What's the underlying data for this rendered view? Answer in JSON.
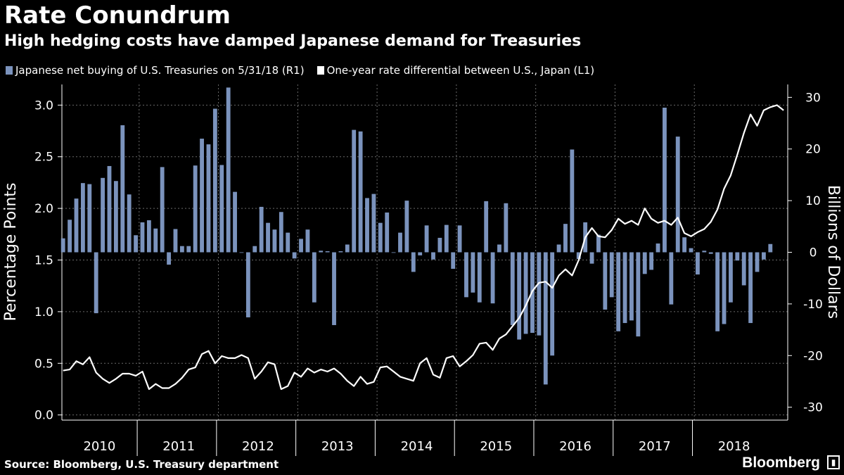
{
  "header": {
    "title": "Rate Conundrum",
    "subtitle": "High hedging costs have damped Japanese demand for Treasuries"
  },
  "legend": {
    "bars_label": "Japanese net buying of U.S. Treasuries on 5/31/18 (R1)",
    "line_label": "One-year rate differential between U.S., Japan (L1)"
  },
  "footer": {
    "source": "Source: Bloomberg, U.S. Treasury department",
    "brand": "Bloomberg"
  },
  "colors": {
    "background": "#000000",
    "bars": "#7b93bd",
    "line": "#ffffff",
    "grid": "#6a6a6a"
  },
  "chart_data": {
    "type": "bar+line",
    "title": "Rate Conundrum",
    "subtitle": "High hedging costs have damped Japanese demand for Treasuries",
    "x_categories": [
      "2010",
      "2011",
      "2012",
      "2013",
      "2014",
      "2015",
      "2016",
      "2017",
      "2018"
    ],
    "left_axis": {
      "label": "Percentage Points",
      "range": [
        -0.05,
        3.2
      ],
      "ticks": [
        "0.0",
        "0.5",
        "1.0",
        "1.5",
        "2.0",
        "2.5",
        "3.0"
      ]
    },
    "right_axis": {
      "label": "Billions of Dollars",
      "range": [
        -32.5,
        32.5
      ],
      "ticks": [
        "-30",
        "-20",
        "-10",
        "0",
        "10",
        "20",
        "30"
      ]
    },
    "series": [
      {
        "name": "Japanese net buying of U.S. Treasuries on 5/31/18 (R1)",
        "axis": "right",
        "kind": "bar",
        "start": "2010-01",
        "values": [
          2.7,
          6.3,
          10.4,
          13.4,
          13.2,
          -11.8,
          14.4,
          16.7,
          13.8,
          24.6,
          11.2,
          3.3,
          5.8,
          6.2,
          4.6,
          16.5,
          -2.4,
          4.5,
          1.2,
          1.2,
          16.8,
          22.0,
          20.9,
          27.8,
          16.9,
          31.9,
          11.7,
          -0.1,
          -12.6,
          1.2,
          8.8,
          5.7,
          4.4,
          7.8,
          3.8,
          -1.2,
          2.6,
          4.4,
          -9.7,
          0.3,
          0.2,
          -14.1,
          0.2,
          1.5,
          23.7,
          23.4,
          10.5,
          11.3,
          5.7,
          7.7,
          0.0,
          3.8,
          10.0,
          -3.8,
          -0.6,
          5.2,
          -1.4,
          2.8,
          5.3,
          -3.2,
          5.2,
          -8.7,
          -7.8,
          -9.7,
          9.9,
          -9.9,
          1.5,
          9.5,
          -14.1,
          -16.9,
          -15.8,
          -15.6,
          -16.1,
          -25.6,
          -20.0,
          1.5,
          5.5,
          19.9,
          -1.3,
          5.8,
          -2.2,
          3.4,
          -11.1,
          -8.7,
          -15.3,
          -13.7,
          -13.2,
          -16.3,
          -4.2,
          -3.4,
          1.7,
          28.0,
          -10.1,
          22.4,
          2.9,
          0.8,
          -4.3,
          0.3,
          -0.3,
          -15.3,
          -13.9,
          -9.7,
          -1.6,
          -6.4,
          -13.7,
          -3.8,
          -1.4,
          1.6
        ]
      },
      {
        "name": "One-year rate differential between U.S., Japan (L1)",
        "axis": "left",
        "kind": "line",
        "start": "2010-01",
        "values": [
          0.43,
          0.44,
          0.52,
          0.49,
          0.56,
          0.41,
          0.35,
          0.31,
          0.35,
          0.4,
          0.4,
          0.38,
          0.42,
          0.25,
          0.3,
          0.26,
          0.26,
          0.3,
          0.36,
          0.44,
          0.46,
          0.59,
          0.62,
          0.5,
          0.57,
          0.55,
          0.55,
          0.58,
          0.55,
          0.35,
          0.42,
          0.51,
          0.49,
          0.25,
          0.28,
          0.41,
          0.37,
          0.45,
          0.41,
          0.44,
          0.42,
          0.45,
          0.4,
          0.33,
          0.28,
          0.37,
          0.3,
          0.32,
          0.46,
          0.47,
          0.42,
          0.37,
          0.35,
          0.33,
          0.5,
          0.55,
          0.39,
          0.36,
          0.55,
          0.57,
          0.47,
          0.52,
          0.58,
          0.69,
          0.7,
          0.63,
          0.74,
          0.78,
          0.86,
          0.94,
          1.06,
          1.2,
          1.28,
          1.29,
          1.23,
          1.35,
          1.41,
          1.35,
          1.5,
          1.72,
          1.81,
          1.73,
          1.72,
          1.79,
          1.9,
          1.85,
          1.88,
          1.84,
          2.0,
          1.9,
          1.86,
          1.88,
          1.84,
          1.91,
          1.76,
          1.73,
          1.77,
          1.8,
          1.87,
          1.99,
          2.19,
          2.32,
          2.52,
          2.73,
          2.91,
          2.8,
          2.95,
          2.98,
          3.0,
          2.95
        ]
      }
    ],
    "grid": true,
    "legend_position": "top-left"
  }
}
